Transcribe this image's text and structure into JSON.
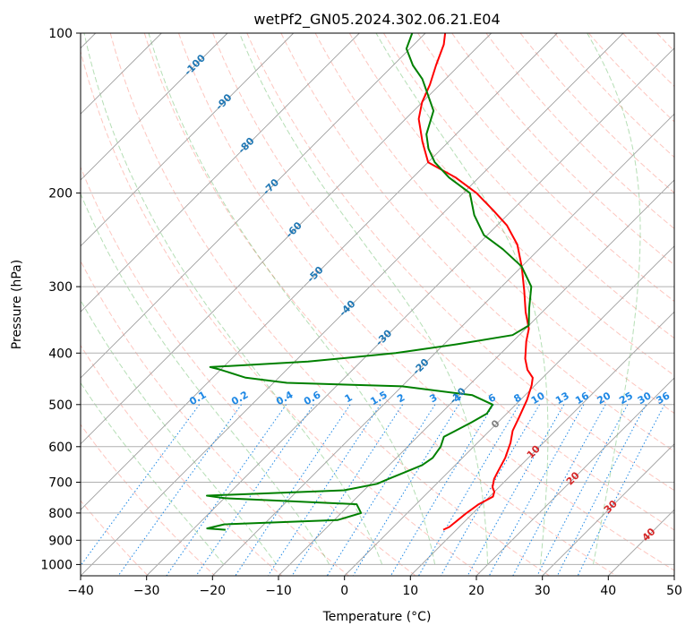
{
  "chart_data": {
    "type": "line",
    "title": "wetPf2_GN05.2024.302.06.21.E04",
    "xlabel": "Temperature (°C)",
    "ylabel": "Pressure (hPa)",
    "xlim": [
      -40,
      50
    ],
    "ylim": [
      1050,
      100
    ],
    "y_scale": "log",
    "grid": true,
    "x_ticks": [
      -40,
      -30,
      -20,
      -10,
      0,
      10,
      20,
      30,
      40,
      50
    ],
    "y_ticks": [
      100,
      200,
      300,
      400,
      500,
      600,
      700,
      800,
      900,
      1000
    ],
    "colors": {
      "temperature": "#ff0000",
      "dewpoint": "#008000",
      "isotherm_label": "#1f77b4",
      "mixing_ratio": "#1e88e5",
      "dry_adiabat": "#fa8072",
      "moist_adiabat": "#2ca02c",
      "freezing_line": "#d2b48c",
      "positive_label": "#d62728",
      "zero_label": "#808080"
    },
    "isotherm_labels": [
      {
        "text": "-100",
        "t": -100,
        "p": 115
      },
      {
        "text": "-90",
        "t": -90,
        "p": 135
      },
      {
        "text": "-80",
        "t": -80,
        "p": 163
      },
      {
        "text": "-70",
        "t": -70,
        "p": 195
      },
      {
        "text": "-60",
        "t": -60,
        "p": 235
      },
      {
        "text": "-50",
        "t": -50,
        "p": 285
      },
      {
        "text": "-40",
        "t": -40,
        "p": 330
      },
      {
        "text": "-30",
        "t": -30,
        "p": 375
      },
      {
        "text": "-20",
        "t": -20,
        "p": 425
      },
      {
        "text": "-10",
        "t": -10,
        "p": 482
      },
      {
        "text": "0",
        "t": 0,
        "p": 545
      },
      {
        "text": "10",
        "t": 10,
        "p": 615
      },
      {
        "text": "20",
        "t": 20,
        "p": 690
      },
      {
        "text": "30",
        "t": 30,
        "p": 780
      },
      {
        "text": "40",
        "t": 40,
        "p": 880
      }
    ],
    "mixing_ratio_labels": [
      "0.1",
      "0.2",
      "0.4",
      "0.6",
      "1",
      "1.5",
      "2",
      "3",
      "4",
      "6",
      "8",
      "10",
      "13",
      "16",
      "20",
      "25",
      "30",
      "36"
    ],
    "mixing_ratio_label_pressure": 500,
    "series": [
      {
        "name": "temperature",
        "points": [
          {
            "t": 8.0,
            "p": 860
          },
          {
            "t": 8.5,
            "p": 850
          },
          {
            "t": 9.0,
            "p": 800
          },
          {
            "t": 9.5,
            "p": 770
          },
          {
            "t": 10.5,
            "p": 745
          },
          {
            "t": 10.0,
            "p": 730
          },
          {
            "t": 9.0,
            "p": 715
          },
          {
            "t": 8.0,
            "p": 690
          },
          {
            "t": 7.5,
            "p": 670
          },
          {
            "t": 6.5,
            "p": 630
          },
          {
            "t": 5.0,
            "p": 590
          },
          {
            "t": 3.5,
            "p": 560
          },
          {
            "t": 2.5,
            "p": 530
          },
          {
            "t": 1.0,
            "p": 490
          },
          {
            "t": -0.5,
            "p": 460
          },
          {
            "t": -1.5,
            "p": 445
          },
          {
            "t": -3.5,
            "p": 430
          },
          {
            "t": -5.5,
            "p": 410
          },
          {
            "t": -8.0,
            "p": 380
          },
          {
            "t": -9.5,
            "p": 360
          },
          {
            "t": -12.5,
            "p": 335
          },
          {
            "t": -16.0,
            "p": 305
          },
          {
            "t": -20.0,
            "p": 275
          },
          {
            "t": -24.0,
            "p": 250
          },
          {
            "t": -28.5,
            "p": 230
          },
          {
            "t": -33.0,
            "p": 215
          },
          {
            "t": -38.0,
            "p": 200
          },
          {
            "t": -43.5,
            "p": 187
          },
          {
            "t": -50.0,
            "p": 175
          },
          {
            "t": -54.0,
            "p": 160
          },
          {
            "t": -58.0,
            "p": 145
          },
          {
            "t": -60.0,
            "p": 135
          },
          {
            "t": -61.5,
            "p": 125
          },
          {
            "t": -63.5,
            "p": 115
          },
          {
            "t": -65.5,
            "p": 105
          },
          {
            "t": -67.0,
            "p": 100
          }
        ]
      },
      {
        "name": "dewpoint",
        "points": [
          {
            "t": -25.0,
            "p": 860
          },
          {
            "t": -28.0,
            "p": 855
          },
          {
            "t": -26.0,
            "p": 840
          },
          {
            "t": -9.5,
            "p": 825
          },
          {
            "t": -7.0,
            "p": 800
          },
          {
            "t": -9.0,
            "p": 770
          },
          {
            "t": -30.0,
            "p": 750
          },
          {
            "t": -33.0,
            "p": 742
          },
          {
            "t": -13.0,
            "p": 725
          },
          {
            "t": -9.0,
            "p": 705
          },
          {
            "t": -8.0,
            "p": 690
          },
          {
            "t": -6.5,
            "p": 670
          },
          {
            "t": -5.0,
            "p": 650
          },
          {
            "t": -4.5,
            "p": 630
          },
          {
            "t": -5.0,
            "p": 600
          },
          {
            "t": -6.0,
            "p": 575
          },
          {
            "t": -4.0,
            "p": 540
          },
          {
            "t": -3.0,
            "p": 520
          },
          {
            "t": -3.5,
            "p": 500
          },
          {
            "t": -8.0,
            "p": 480
          },
          {
            "t": -20.0,
            "p": 462
          },
          {
            "t": -38.0,
            "p": 455
          },
          {
            "t": -45.0,
            "p": 445
          },
          {
            "t": -50.0,
            "p": 430
          },
          {
            "t": -52.0,
            "p": 425
          },
          {
            "t": -38.0,
            "p": 415
          },
          {
            "t": -26.0,
            "p": 400
          },
          {
            "t": -18.0,
            "p": 385
          },
          {
            "t": -11.0,
            "p": 370
          },
          {
            "t": -10.0,
            "p": 355
          },
          {
            "t": -12.5,
            "p": 330
          },
          {
            "t": -15.5,
            "p": 300
          },
          {
            "t": -20.0,
            "p": 275
          },
          {
            "t": -25.5,
            "p": 255
          },
          {
            "t": -30.5,
            "p": 240
          },
          {
            "t": -35.0,
            "p": 220
          },
          {
            "t": -39.0,
            "p": 200
          },
          {
            "t": -44.5,
            "p": 187
          },
          {
            "t": -49.0,
            "p": 175
          },
          {
            "t": -52.0,
            "p": 165
          },
          {
            "t": -54.5,
            "p": 155
          },
          {
            "t": -57.0,
            "p": 140
          },
          {
            "t": -60.5,
            "p": 130
          },
          {
            "t": -63.5,
            "p": 122
          },
          {
            "t": -67.0,
            "p": 115
          },
          {
            "t": -70.5,
            "p": 107
          },
          {
            "t": -72.0,
            "p": 100
          }
        ]
      }
    ]
  }
}
